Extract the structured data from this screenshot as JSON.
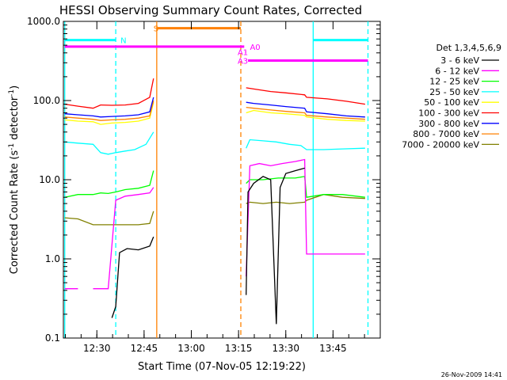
{
  "chart_data": {
    "type": "line",
    "title": "HESSI Observing Summary Count Rates, Corrected",
    "xlabel": "Start Time (07-Nov-05 12:19:22)",
    "ylabel_main": "Corrected Count Rate (s",
    "ylabel_sup": "-1",
    "ylabel_tail": " detector",
    "ylabel_tail2": ")",
    "footer": "26-Nov-2009 14:41",
    "yscale": "log",
    "ylim": [
      0.1,
      1000
    ],
    "yticks": [
      {
        "v": 1000,
        "label": "1000.0"
      },
      {
        "v": 100,
        "label": "100.0"
      },
      {
        "v": 10,
        "label": "10.0"
      },
      {
        "v": 1,
        "label": "1.0"
      },
      {
        "v": 0.1,
        "label": "0.1"
      }
    ],
    "xlim": [
      12.3228,
      14.0
    ],
    "xticks": [
      {
        "v": 12.5,
        "label": "12:30"
      },
      {
        "v": 12.75,
        "label": "12:45"
      },
      {
        "v": 13.0,
        "label": "13:00"
      },
      {
        "v": 13.25,
        "label": "13:15"
      },
      {
        "v": 13.5,
        "label": "13:30"
      },
      {
        "v": 13.75,
        "label": "13:45"
      }
    ],
    "legend_title": "Det 1,3,4,5,6,9",
    "legend_placement": "right",
    "series": [
      {
        "name": "3 - 6 keV",
        "color": "#000000",
        "points": [
          [
            12.58,
            0.18
          ],
          [
            12.6,
            0.25
          ],
          [
            12.62,
            1.2
          ],
          [
            12.66,
            1.35
          ],
          [
            12.72,
            1.3
          ],
          [
            12.78,
            1.45
          ],
          [
            12.8,
            1.9
          ],
          [
            12.8,
            null
          ],
          [
            13.29,
            0.35
          ],
          [
            13.3,
            7
          ],
          [
            13.33,
            9
          ],
          [
            13.38,
            11
          ],
          [
            13.42,
            10
          ],
          [
            13.45,
            0.15
          ],
          [
            13.47,
            8
          ],
          [
            13.5,
            12
          ],
          [
            13.55,
            13
          ],
          [
            13.6,
            14
          ],
          [
            13.61,
            null
          ]
        ]
      },
      {
        "name": "6 - 12 keV",
        "color": "#ff00ff",
        "points": [
          [
            12.33,
            0.42
          ],
          [
            12.4,
            0.42
          ],
          [
            12.4,
            null
          ],
          [
            12.48,
            0.42
          ],
          [
            12.56,
            0.42
          ],
          [
            12.6,
            5.5
          ],
          [
            12.65,
            6.2
          ],
          [
            12.72,
            6.5
          ],
          [
            12.78,
            6.8
          ],
          [
            12.8,
            8
          ],
          [
            12.8,
            null
          ],
          [
            13.29,
            0.6
          ],
          [
            13.31,
            15
          ],
          [
            13.36,
            16
          ],
          [
            13.42,
            15
          ],
          [
            13.48,
            16
          ],
          [
            13.55,
            17
          ],
          [
            13.6,
            18
          ],
          [
            13.61,
            1.15
          ],
          [
            13.7,
            1.15
          ],
          [
            13.8,
            1.15
          ],
          [
            13.92,
            1.15
          ]
        ]
      },
      {
        "name": "12 - 25 keV",
        "color": "#00ff00",
        "points": [
          [
            12.33,
            6
          ],
          [
            12.4,
            6.5
          ],
          [
            12.48,
            6.5
          ],
          [
            12.52,
            6.8
          ],
          [
            12.56,
            6.7
          ],
          [
            12.6,
            7
          ],
          [
            12.65,
            7.5
          ],
          [
            12.72,
            7.8
          ],
          [
            12.78,
            8.5
          ],
          [
            12.8,
            13
          ],
          [
            12.8,
            null
          ],
          [
            13.29,
            9
          ],
          [
            13.31,
            10
          ],
          [
            13.38,
            10
          ],
          [
            13.46,
            10.5
          ],
          [
            13.55,
            10.5
          ],
          [
            13.6,
            11
          ],
          [
            13.61,
            6
          ],
          [
            13.7,
            6.5
          ],
          [
            13.8,
            6.5
          ],
          [
            13.92,
            6
          ]
        ]
      },
      {
        "name": "25 - 50 keV",
        "color": "#00ffff",
        "points": [
          [
            12.33,
            30
          ],
          [
            12.4,
            29
          ],
          [
            12.48,
            28
          ],
          [
            12.52,
            22
          ],
          [
            12.56,
            21
          ],
          [
            12.6,
            22
          ],
          [
            12.65,
            23
          ],
          [
            12.7,
            24
          ],
          [
            12.76,
            28
          ],
          [
            12.8,
            40
          ],
          [
            12.8,
            null
          ],
          [
            13.29,
            25
          ],
          [
            13.31,
            32
          ],
          [
            13.38,
            31
          ],
          [
            13.45,
            30
          ],
          [
            13.52,
            28
          ],
          [
            13.58,
            27
          ],
          [
            13.61,
            24
          ],
          [
            13.7,
            24
          ],
          [
            13.8,
            24.5
          ],
          [
            13.92,
            25
          ]
        ]
      },
      {
        "name": "50 - 100 keV",
        "color": "#ffff00",
        "points": [
          [
            12.33,
            57
          ],
          [
            12.4,
            55
          ],
          [
            12.48,
            54
          ],
          [
            12.52,
            50
          ],
          [
            12.58,
            52
          ],
          [
            12.65,
            53
          ],
          [
            12.72,
            55
          ],
          [
            12.78,
            60
          ],
          [
            12.8,
            95
          ],
          [
            12.8,
            null
          ],
          [
            13.29,
            70
          ],
          [
            13.33,
            75
          ],
          [
            13.42,
            70
          ],
          [
            13.5,
            68
          ],
          [
            13.6,
            65
          ],
          [
            13.61,
            62
          ],
          [
            13.72,
            58
          ],
          [
            13.82,
            56
          ],
          [
            13.92,
            55
          ]
        ]
      },
      {
        "name": "100 - 300 keV",
        "color": "#ff0000",
        "points": [
          [
            12.33,
            90
          ],
          [
            12.4,
            85
          ],
          [
            12.48,
            80
          ],
          [
            12.52,
            88
          ],
          [
            12.58,
            87
          ],
          [
            12.65,
            88
          ],
          [
            12.72,
            92
          ],
          [
            12.78,
            110
          ],
          [
            12.8,
            190
          ],
          [
            12.8,
            null
          ],
          [
            13.29,
            145
          ],
          [
            13.33,
            140
          ],
          [
            13.42,
            130
          ],
          [
            13.5,
            125
          ],
          [
            13.6,
            118
          ],
          [
            13.61,
            110
          ],
          [
            13.72,
            105
          ],
          [
            13.82,
            98
          ],
          [
            13.92,
            90
          ]
        ]
      },
      {
        "name": "300 - 800 keV",
        "color": "#0000ff",
        "points": [
          [
            12.33,
            68
          ],
          [
            12.4,
            66
          ],
          [
            12.48,
            64
          ],
          [
            12.52,
            62
          ],
          [
            12.58,
            63
          ],
          [
            12.65,
            64
          ],
          [
            12.72,
            66
          ],
          [
            12.78,
            72
          ],
          [
            12.8,
            110
          ],
          [
            12.8,
            null
          ],
          [
            13.29,
            95
          ],
          [
            13.33,
            92
          ],
          [
            13.42,
            88
          ],
          [
            13.5,
            84
          ],
          [
            13.6,
            80
          ],
          [
            13.61,
            72
          ],
          [
            13.72,
            68
          ],
          [
            13.82,
            64
          ],
          [
            13.92,
            62
          ]
        ]
      },
      {
        "name": "800 - 7000 keV",
        "color": "#ff8000",
        "points": [
          [
            12.33,
            62
          ],
          [
            12.4,
            60
          ],
          [
            12.48,
            58
          ],
          [
            12.52,
            56
          ],
          [
            12.58,
            57
          ],
          [
            12.65,
            58
          ],
          [
            12.72,
            60
          ],
          [
            12.78,
            64
          ],
          [
            12.8,
            100
          ],
          [
            12.8,
            null
          ],
          [
            13.29,
            82
          ],
          [
            13.33,
            80
          ],
          [
            13.42,
            76
          ],
          [
            13.5,
            73
          ],
          [
            13.6,
            70
          ],
          [
            13.61,
            65
          ],
          [
            13.72,
            62
          ],
          [
            13.82,
            60
          ],
          [
            13.92,
            58
          ]
        ]
      },
      {
        "name": "7000 - 20000 keV",
        "color": "#808000",
        "points": [
          [
            12.33,
            3.3
          ],
          [
            12.4,
            3.2
          ],
          [
            12.48,
            2.7
          ],
          [
            12.56,
            2.7
          ],
          [
            12.65,
            2.7
          ],
          [
            12.72,
            2.7
          ],
          [
            12.78,
            2.8
          ],
          [
            12.8,
            4
          ],
          [
            12.8,
            null
          ],
          [
            13.29,
            5
          ],
          [
            13.31,
            5.2
          ],
          [
            13.38,
            5
          ],
          [
            13.45,
            5.2
          ],
          [
            13.52,
            5
          ],
          [
            13.6,
            5.2
          ],
          [
            13.61,
            5.5
          ],
          [
            13.7,
            6.5
          ],
          [
            13.8,
            6
          ],
          [
            13.92,
            5.8
          ]
        ]
      }
    ],
    "vlines": [
      {
        "x": 12.33,
        "color": "#00ffff",
        "dash": false
      },
      {
        "x": 12.6,
        "color": "#00ffff",
        "dash": true
      },
      {
        "x": 12.817,
        "color": "#ff8000",
        "dash": false
      },
      {
        "x": 13.262,
        "color": "#ff8000",
        "dash": true
      },
      {
        "x": 13.645,
        "color": "#00ffff",
        "dash": false
      },
      {
        "x": 13.935,
        "color": "#00ffff",
        "dash": true
      }
    ],
    "flags": [
      {
        "label": "N",
        "color": "#00ffff",
        "y": 580,
        "segments": [
          [
            12.33,
            12.6
          ],
          [
            13.645,
            13.935
          ]
        ],
        "label_x": 12.625
      },
      {
        "label": "S",
        "color": "#ff8000",
        "y": 820,
        "segments": [
          [
            12.817,
            13.262
          ]
        ],
        "label_x": 12.8
      },
      {
        "label": "A0",
        "color": "#ff00ff",
        "y": 480,
        "segments": [
          [
            12.33,
            13.28
          ]
        ],
        "label_x": 13.31
      },
      {
        "label": "A1",
        "color": "#ff00ff",
        "y": 410,
        "segments": [
          [
            13.285,
            13.29
          ]
        ],
        "label_x": 13.245
      },
      {
        "label": "A3",
        "color": "#ff00ff",
        "y": 320,
        "segments": [
          [
            13.3,
            13.935
          ]
        ],
        "label_x": 13.245
      }
    ]
  }
}
